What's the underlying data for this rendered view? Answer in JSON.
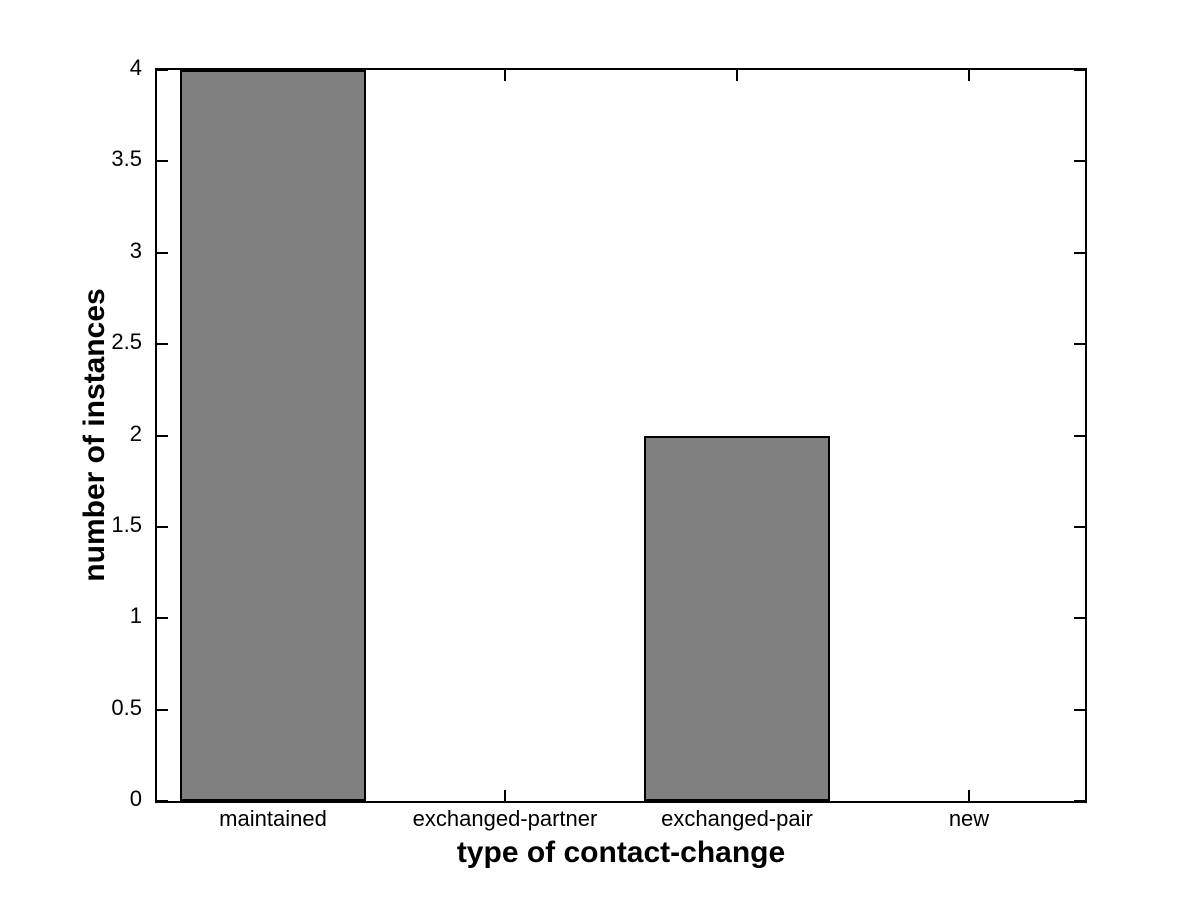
{
  "figure": {
    "background_color": "#ffffff",
    "axis_color": "#000000"
  },
  "chart_data": {
    "type": "bar",
    "title": "",
    "xlabel": "type of contact-change",
    "ylabel": "number of instances",
    "categories": [
      "maintained",
      "exchanged-partner",
      "exchanged-pair",
      "new"
    ],
    "values": [
      4,
      0,
      2,
      0
    ],
    "ylim": [
      0,
      4
    ],
    "yticks": [
      0,
      0.5,
      1,
      1.5,
      2,
      2.5,
      3,
      3.5,
      4
    ],
    "ytick_labels": [
      "0",
      "0.5",
      "1",
      "1.5",
      "2",
      "2.5",
      "3",
      "3.5",
      "4"
    ],
    "bar_color": "#808080",
    "bar_edge_color": "#000000",
    "bar_width_fraction": 0.8,
    "grid": false,
    "legend": null,
    "box": true,
    "tick_direction": "in"
  }
}
